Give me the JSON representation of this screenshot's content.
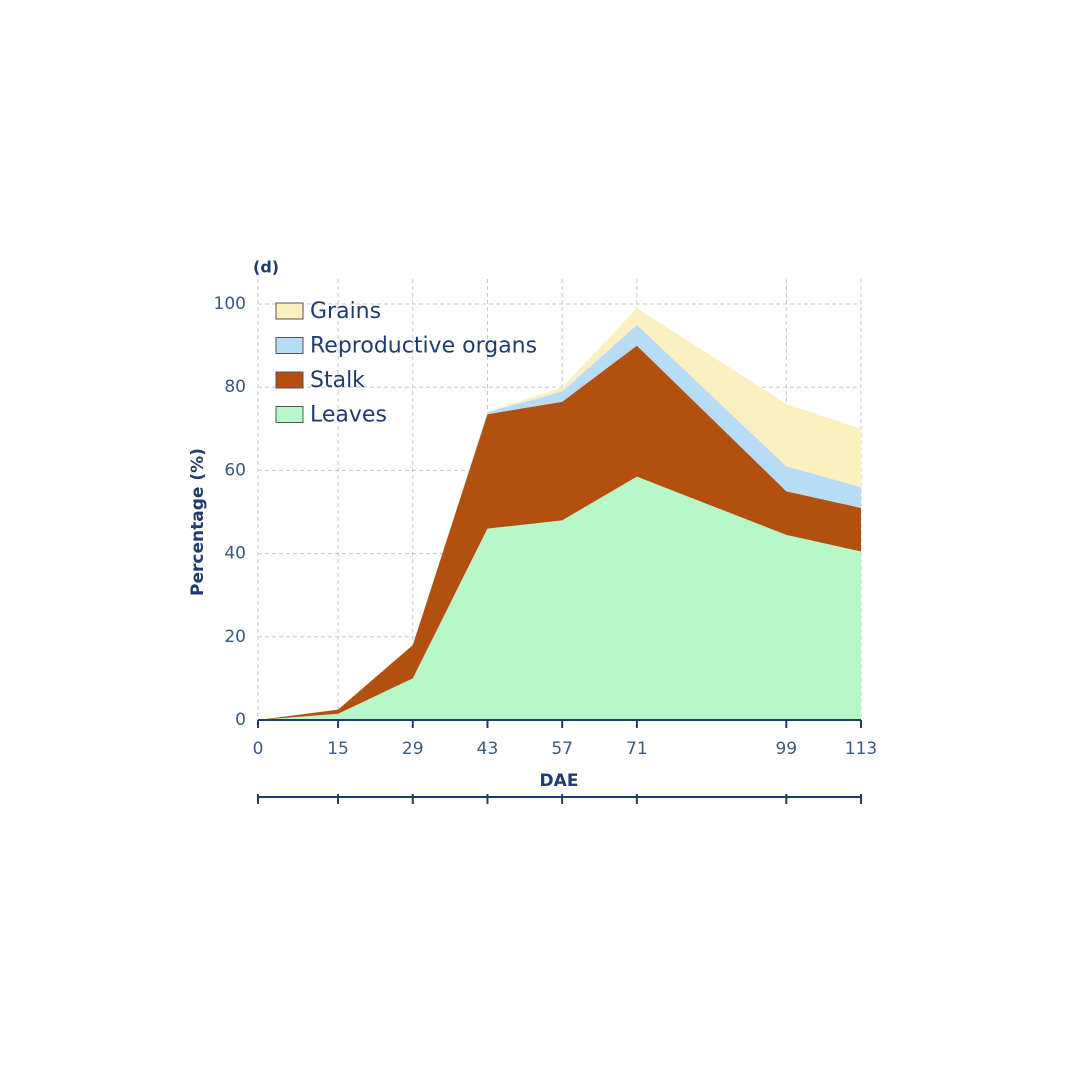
{
  "chart_data": {
    "type": "stacked_area",
    "title": "(d)",
    "x_label": "DAE",
    "y_label": "Percentage (%)",
    "x": [
      0,
      15,
      29,
      43,
      57,
      71,
      99,
      113
    ],
    "series": [
      {
        "name": "Leaves",
        "color": "#b6f8c8",
        "values": [
          0,
          1.5,
          10,
          46,
          48,
          58.5,
          44.5,
          40.5
        ]
      },
      {
        "name": "Stalk",
        "color": "#b3500f",
        "values": [
          0,
          1,
          8,
          27.5,
          28.5,
          31.5,
          10.5,
          10.5
        ]
      },
      {
        "name": "Reproductive organs",
        "color": "#b8dcf5",
        "values": [
          0,
          0,
          0,
          0.5,
          2.5,
          5,
          6,
          5
        ]
      },
      {
        "name": "Grains",
        "color": "#fdf0c0",
        "values": [
          0,
          0,
          0,
          0,
          1,
          4,
          15,
          14
        ]
      }
    ],
    "xlim": [
      0,
      113
    ],
    "xticks": [
      0,
      15,
      29,
      43,
      57,
      71,
      99,
      113
    ],
    "ylim": [
      0,
      106
    ],
    "yticks": [
      0,
      20,
      40,
      60,
      80,
      100
    ],
    "grid": true,
    "legend": "upper left"
  }
}
